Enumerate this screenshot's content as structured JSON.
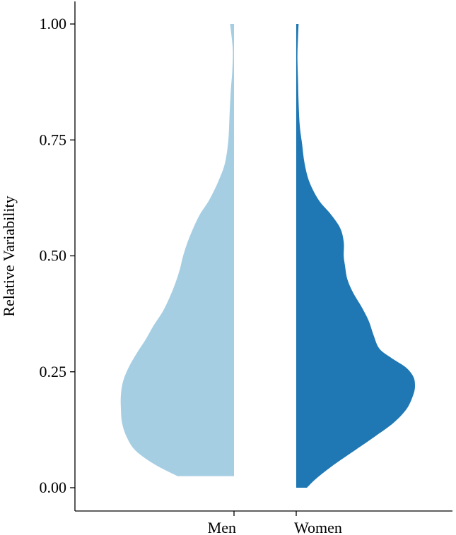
{
  "chart_data": {
    "type": "split-violin",
    "title": "",
    "xlabel": "",
    "ylabel": "Relative Variability",
    "ylim": [
      0,
      1
    ],
    "yticks": [
      "0.00",
      "0.25",
      "0.50",
      "0.75",
      "1.00"
    ],
    "categories": [
      "Men",
      "Women"
    ],
    "grid": false,
    "legend": "none",
    "series": [
      {
        "name": "Men",
        "color": "#a6cee3",
        "side": "left",
        "y_min": 0.025,
        "y_max": 1.0,
        "density": [
          [
            0.025,
            0.5
          ],
          [
            0.05,
            0.7
          ],
          [
            0.08,
            0.87
          ],
          [
            0.11,
            0.95
          ],
          [
            0.14,
            0.99
          ],
          [
            0.17,
            1.0
          ],
          [
            0.2,
            1.0
          ],
          [
            0.23,
            0.98
          ],
          [
            0.26,
            0.93
          ],
          [
            0.29,
            0.86
          ],
          [
            0.32,
            0.78
          ],
          [
            0.35,
            0.71
          ],
          [
            0.38,
            0.63
          ],
          [
            0.41,
            0.57
          ],
          [
            0.44,
            0.52
          ],
          [
            0.47,
            0.48
          ],
          [
            0.5,
            0.45
          ],
          [
            0.53,
            0.41
          ],
          [
            0.56,
            0.36
          ],
          [
            0.59,
            0.3
          ],
          [
            0.62,
            0.22
          ],
          [
            0.66,
            0.14
          ],
          [
            0.7,
            0.08
          ],
          [
            0.75,
            0.05
          ],
          [
            0.8,
            0.04
          ],
          [
            0.85,
            0.03
          ],
          [
            0.9,
            0.015
          ],
          [
            0.94,
            0.01
          ],
          [
            0.97,
            0.02
          ],
          [
            1.0,
            0.035
          ]
        ]
      },
      {
        "name": "Women",
        "color": "#1f78b4",
        "side": "right",
        "y_min": 0.0,
        "y_max": 1.0,
        "density": [
          [
            0.0,
            0.09
          ],
          [
            0.02,
            0.17
          ],
          [
            0.05,
            0.32
          ],
          [
            0.08,
            0.49
          ],
          [
            0.11,
            0.66
          ],
          [
            0.14,
            0.82
          ],
          [
            0.17,
            0.93
          ],
          [
            0.2,
            0.985
          ],
          [
            0.22,
            1.0
          ],
          [
            0.24,
            0.985
          ],
          [
            0.26,
            0.92
          ],
          [
            0.28,
            0.8
          ],
          [
            0.3,
            0.7
          ],
          [
            0.33,
            0.65
          ],
          [
            0.36,
            0.61
          ],
          [
            0.39,
            0.55
          ],
          [
            0.42,
            0.48
          ],
          [
            0.45,
            0.43
          ],
          [
            0.48,
            0.41
          ],
          [
            0.5,
            0.4
          ],
          [
            0.53,
            0.4
          ],
          [
            0.56,
            0.37
          ],
          [
            0.59,
            0.29
          ],
          [
            0.62,
            0.19
          ],
          [
            0.66,
            0.11
          ],
          [
            0.7,
            0.07
          ],
          [
            0.74,
            0.05
          ],
          [
            0.78,
            0.03
          ],
          [
            0.83,
            0.02
          ],
          [
            0.88,
            0.015
          ],
          [
            0.93,
            0.01
          ],
          [
            0.97,
            0.015
          ],
          [
            1.0,
            0.02
          ]
        ]
      }
    ]
  }
}
